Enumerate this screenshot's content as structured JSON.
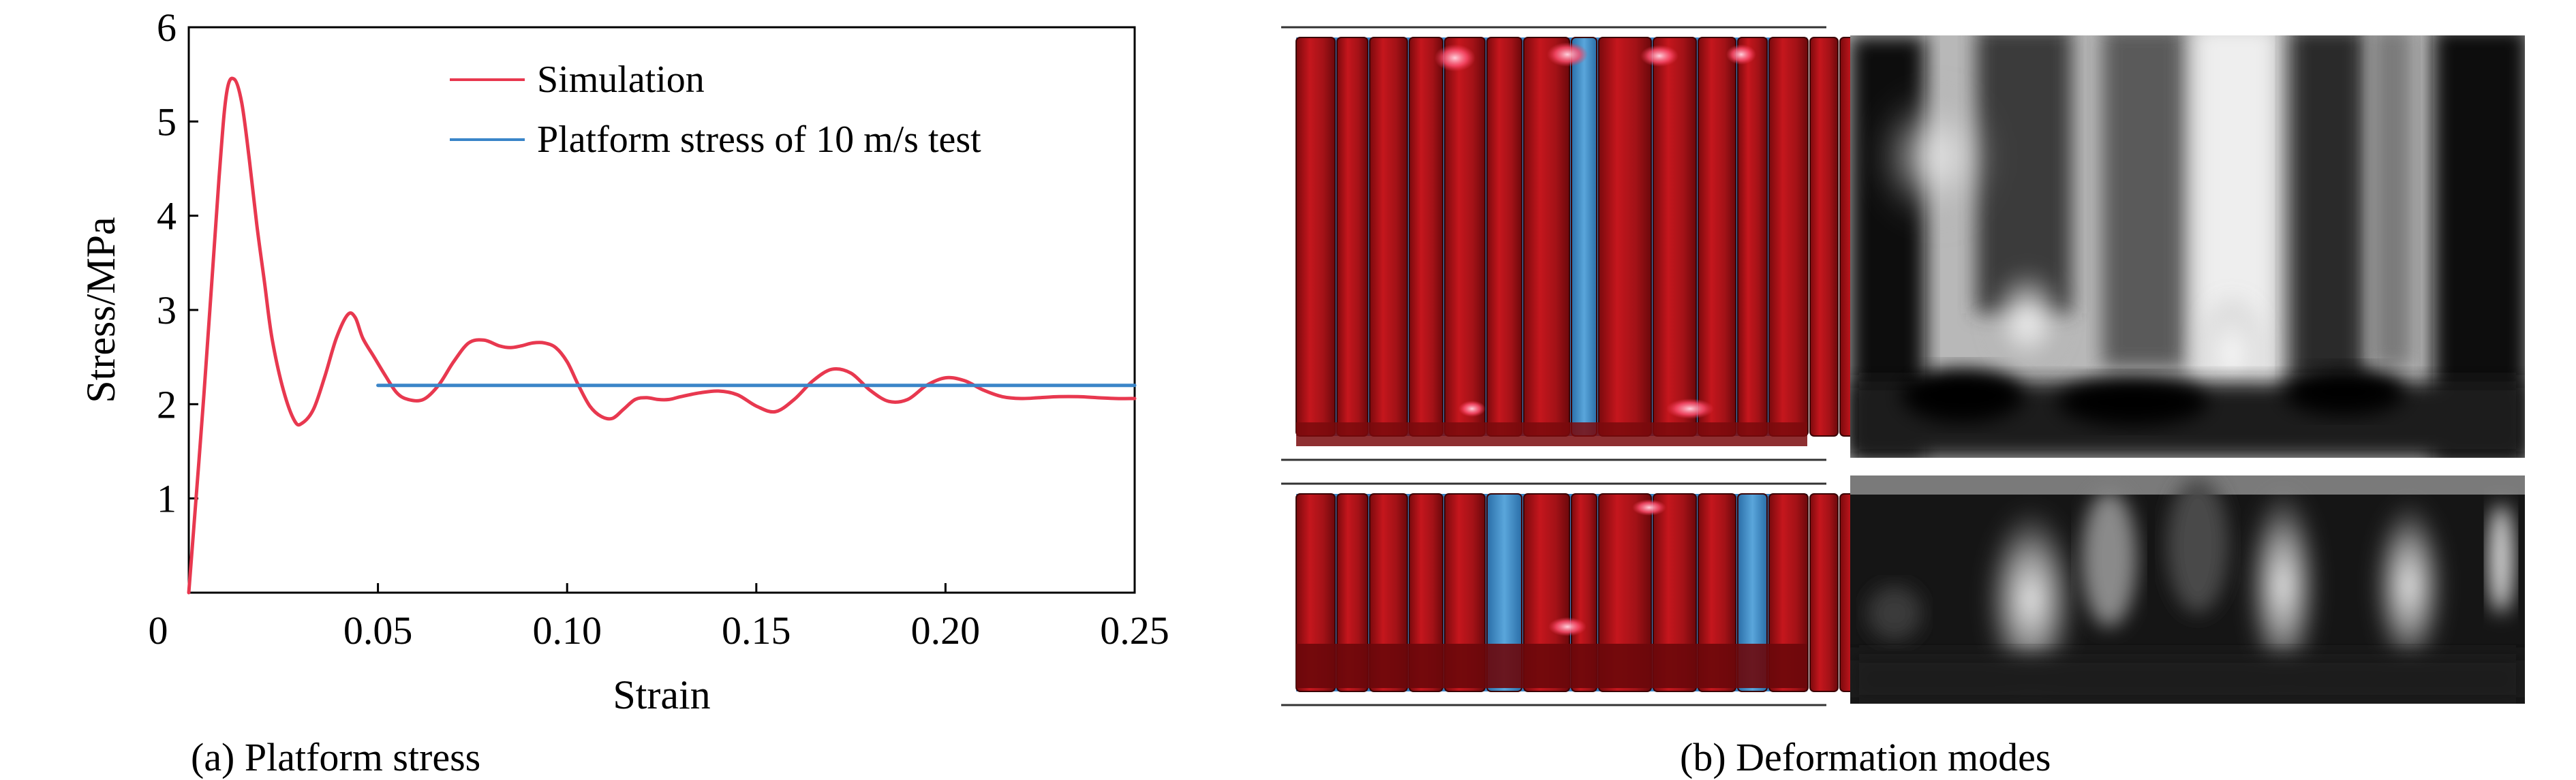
{
  "figure": {
    "panel_a_caption": "(a) Platform stress",
    "panel_b_caption": "(b) Deformation modes"
  },
  "chart_data": {
    "type": "line",
    "title": "",
    "xlabel": "Strain",
    "ylabel": "Stress/MPa",
    "xlim": [
      0,
      0.25
    ],
    "ylim": [
      0,
      6
    ],
    "x_ticks": [
      0,
      0.05,
      0.1,
      0.15,
      0.2,
      0.25
    ],
    "x_tick_labels": [
      "0",
      "0.05",
      "0.10",
      "0.15",
      "0.20",
      "0.25"
    ],
    "y_ticks": [
      1,
      2,
      3,
      4,
      5,
      6
    ],
    "y_tick_labels": [
      "1",
      "2",
      "3",
      "4",
      "5",
      "6"
    ],
    "grid": false,
    "legend_position": "top-right",
    "series": [
      {
        "name": "Simulation",
        "color": "#e8384f",
        "x": [
          0,
          0.004,
          0.008,
          0.01,
          0.012,
          0.014,
          0.016,
          0.018,
          0.02,
          0.022,
          0.025,
          0.028,
          0.03,
          0.033,
          0.036,
          0.039,
          0.042,
          0.044,
          0.046,
          0.049,
          0.052,
          0.055,
          0.058,
          0.062,
          0.066,
          0.07,
          0.074,
          0.078,
          0.082,
          0.085,
          0.088,
          0.091,
          0.094,
          0.097,
          0.1,
          0.103,
          0.106,
          0.109,
          0.112,
          0.115,
          0.118,
          0.121,
          0.124,
          0.127,
          0.13,
          0.135,
          0.14,
          0.145,
          0.15,
          0.155,
          0.16,
          0.165,
          0.17,
          0.175,
          0.18,
          0.185,
          0.19,
          0.195,
          0.2,
          0.205,
          0.21,
          0.215,
          0.22,
          0.225,
          0.23,
          0.235,
          0.24,
          0.245,
          0.25
        ],
        "y": [
          0.0,
          2.1,
          4.4,
          5.3,
          5.45,
          5.2,
          4.6,
          3.9,
          3.3,
          2.7,
          2.15,
          1.82,
          1.8,
          1.95,
          2.3,
          2.7,
          2.95,
          2.92,
          2.7,
          2.5,
          2.3,
          2.12,
          2.05,
          2.05,
          2.2,
          2.45,
          2.65,
          2.68,
          2.62,
          2.6,
          2.62,
          2.65,
          2.65,
          2.6,
          2.45,
          2.2,
          1.98,
          1.87,
          1.85,
          1.95,
          2.05,
          2.07,
          2.05,
          2.05,
          2.08,
          2.12,
          2.14,
          2.1,
          1.98,
          1.92,
          2.05,
          2.25,
          2.37,
          2.33,
          2.15,
          2.03,
          2.05,
          2.2,
          2.28,
          2.25,
          2.15,
          2.08,
          2.06,
          2.07,
          2.08,
          2.08,
          2.07,
          2.06,
          2.06
        ]
      },
      {
        "name": "Platform stress of 10 m/s test",
        "color": "#3a85c8",
        "x": [
          0.05,
          0.25
        ],
        "y": [
          2.2,
          2.2
        ]
      }
    ]
  },
  "deformation_images": [
    {
      "label": "",
      "kind": "simulation"
    },
    {
      "label": "",
      "kind": "experiment"
    },
    {
      "label": "",
      "kind": "simulation"
    },
    {
      "label": "",
      "kind": "experiment"
    }
  ]
}
